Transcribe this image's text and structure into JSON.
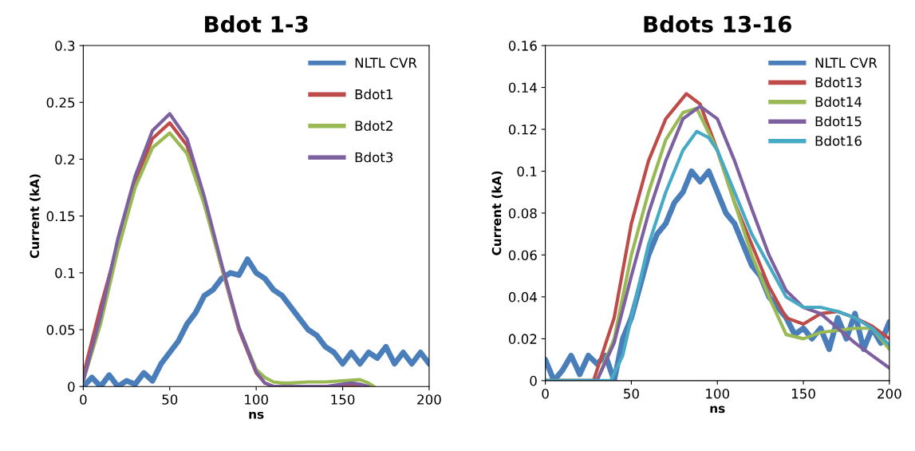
{
  "chart_data": [
    {
      "type": "line",
      "title": "Bdot 1-3",
      "xlabel": "ns",
      "ylabel": "Current (kA)",
      "xlim": [
        0,
        200
      ],
      "xticks": [
        0,
        50,
        100,
        150,
        200
      ],
      "ylim": [
        0,
        0.3
      ],
      "yticks": [
        0,
        0.05,
        0.1,
        0.15,
        0.2,
        0.25,
        0.3
      ],
      "grid": false,
      "legend": "top right",
      "series": [
        {
          "name": "NLTL CVR",
          "color": "#4a7ebb",
          "x": [
            0,
            5,
            10,
            15,
            20,
            25,
            30,
            35,
            40,
            45,
            50,
            55,
            60,
            65,
            70,
            75,
            80,
            85,
            90,
            95,
            100,
            105,
            110,
            115,
            120,
            125,
            130,
            135,
            140,
            145,
            150,
            155,
            160,
            165,
            170,
            175,
            180,
            185,
            190,
            195,
            200
          ],
          "values": [
            0,
            0.008,
            0,
            0.01,
            0,
            0.005,
            0.002,
            0.012,
            0.005,
            0.02,
            0.03,
            0.04,
            0.055,
            0.065,
            0.08,
            0.085,
            0.095,
            0.1,
            0.098,
            0.112,
            0.1,
            0.095,
            0.085,
            0.08,
            0.07,
            0.06,
            0.05,
            0.045,
            0.035,
            0.03,
            0.02,
            0.03,
            0.02,
            0.03,
            0.025,
            0.035,
            0.02,
            0.03,
            0.02,
            0.03,
            0.02
          ]
        },
        {
          "name": "Bdot1",
          "color": "#be4b48",
          "x": [
            0,
            10,
            20,
            30,
            40,
            50,
            60,
            70,
            80,
            90,
            100,
            105,
            110,
            120,
            130,
            140,
            150,
            160,
            165
          ],
          "values": [
            0.01,
            0.07,
            0.125,
            0.18,
            0.218,
            0.232,
            0.212,
            0.162,
            0.105,
            0.05,
            0.012,
            0.003,
            0,
            0,
            0,
            0,
            0,
            0,
            0
          ]
        },
        {
          "name": "Bdot2",
          "color": "#98b954",
          "x": [
            0,
            10,
            20,
            30,
            40,
            50,
            60,
            70,
            80,
            90,
            100,
            105,
            110,
            115,
            120,
            130,
            140,
            150,
            160,
            165,
            168
          ],
          "values": [
            0.005,
            0.055,
            0.12,
            0.175,
            0.21,
            0.223,
            0.205,
            0.16,
            0.105,
            0.052,
            0.015,
            0.008,
            0.004,
            0.003,
            0.003,
            0.004,
            0.004,
            0.005,
            0.006,
            0.003,
            0
          ]
        },
        {
          "name": "Bdot3",
          "color": "#7d60a0",
          "x": [
            0,
            10,
            20,
            30,
            40,
            50,
            60,
            70,
            80,
            90,
            100,
            105,
            110,
            120,
            130,
            140,
            150,
            155,
            160,
            165
          ],
          "values": [
            0.005,
            0.062,
            0.13,
            0.185,
            0.225,
            0.24,
            0.218,
            0.167,
            0.108,
            0.052,
            0.013,
            0.003,
            0,
            0,
            0,
            0,
            0.002,
            0.003,
            0.002,
            0
          ]
        }
      ]
    },
    {
      "type": "line",
      "title": "Bdots 13-16",
      "xlabel": "ns",
      "ylabel": "Current (kA)",
      "xlim": [
        0,
        200
      ],
      "xticks": [
        0,
        50,
        100,
        150,
        200
      ],
      "ylim": [
        0,
        0.16
      ],
      "yticks": [
        0,
        0.02,
        0.04,
        0.06,
        0.08,
        0.1,
        0.12,
        0.14,
        0.16
      ],
      "grid": false,
      "legend": "top right",
      "series": [
        {
          "name": "NLTL CVR",
          "color": "#4a7ebb",
          "x": [
            0,
            5,
            10,
            15,
            20,
            25,
            30,
            35,
            40,
            45,
            50,
            55,
            60,
            65,
            70,
            75,
            80,
            85,
            90,
            95,
            100,
            105,
            110,
            115,
            120,
            125,
            130,
            135,
            140,
            145,
            150,
            155,
            160,
            165,
            170,
            175,
            180,
            185,
            190,
            195,
            200
          ],
          "values": [
            0.01,
            0,
            0.005,
            0.012,
            0.003,
            0.012,
            0.008,
            0.012,
            0,
            0.02,
            0.03,
            0.045,
            0.06,
            0.07,
            0.075,
            0.085,
            0.09,
            0.1,
            0.095,
            0.1,
            0.09,
            0.08,
            0.075,
            0.065,
            0.055,
            0.05,
            0.04,
            0.035,
            0.03,
            0.022,
            0.025,
            0.02,
            0.025,
            0.015,
            0.03,
            0.02,
            0.032,
            0.015,
            0.025,
            0.018,
            0.028
          ]
        },
        {
          "name": "Bdot13",
          "color": "#be4b48",
          "x": [
            0,
            28,
            40,
            50,
            60,
            70,
            82,
            90,
            100,
            110,
            120,
            130,
            140,
            150,
            160,
            170,
            180,
            190,
            200
          ],
          "values": [
            0,
            0,
            0.03,
            0.075,
            0.105,
            0.125,
            0.137,
            0.132,
            0.11,
            0.085,
            0.065,
            0.045,
            0.03,
            0.027,
            0.032,
            0.033,
            0.03,
            0.026,
            0.02
          ]
        },
        {
          "name": "Bdot14",
          "color": "#98b954",
          "x": [
            0,
            30,
            40,
            50,
            60,
            70,
            80,
            88,
            100,
            110,
            120,
            130,
            140,
            150,
            160,
            170,
            180,
            190,
            200
          ],
          "values": [
            0,
            0,
            0.02,
            0.06,
            0.09,
            0.115,
            0.128,
            0.13,
            0.11,
            0.085,
            0.06,
            0.04,
            0.022,
            0.02,
            0.023,
            0.024,
            0.025,
            0.025,
            0.015
          ]
        },
        {
          "name": "Bdot15",
          "color": "#7d60a0",
          "x": [
            0,
            30,
            40,
            50,
            60,
            70,
            80,
            90,
            100,
            110,
            120,
            130,
            140,
            150,
            160,
            170,
            180,
            190,
            200
          ],
          "values": [
            0,
            0,
            0.018,
            0.05,
            0.08,
            0.105,
            0.125,
            0.131,
            0.125,
            0.105,
            0.082,
            0.06,
            0.043,
            0.035,
            0.032,
            0.025,
            0.018,
            0.012,
            0.006
          ]
        },
        {
          "name": "Bdot16",
          "color": "#46aac5",
          "x": [
            0,
            38,
            45,
            50,
            60,
            70,
            80,
            88,
            95,
            100,
            110,
            120,
            130,
            140,
            150,
            160,
            170,
            180,
            190,
            200
          ],
          "values": [
            0,
            0,
            0.012,
            0.03,
            0.065,
            0.09,
            0.11,
            0.119,
            0.116,
            0.11,
            0.09,
            0.07,
            0.055,
            0.04,
            0.035,
            0.035,
            0.033,
            0.03,
            0.025,
            0.017
          ]
        }
      ]
    }
  ]
}
